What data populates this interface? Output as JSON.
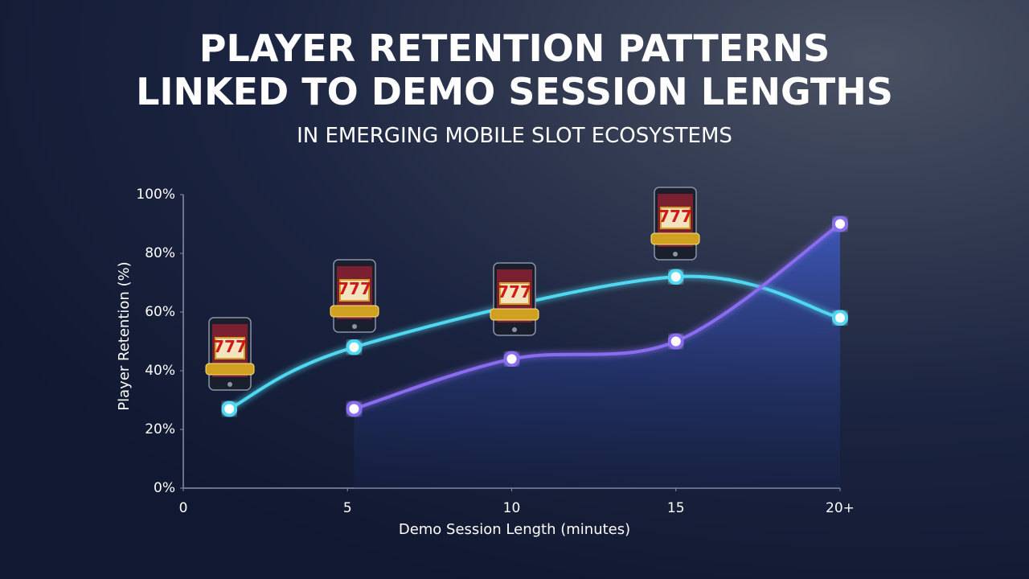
{
  "chart_data": {
    "type": "line",
    "title": [
      "PLAYER RETENTION PATTERNS",
      "LINKED TO DEMO SESSION LENGTHS"
    ],
    "subtitle": "IN EMERGING MOBILE SLOT ECOSYSTEMS",
    "x_label": "Demo Session Length (minutes)",
    "y_label": "Player Retention (%)",
    "series": [
      {
        "color": "#4fd8f0",
        "x": [
          1.4,
          5.2,
          15,
          20
        ],
        "values": [
          27,
          48,
          72,
          58
        ]
      },
      {
        "color": "#8a6cf0",
        "x": [
          5.2,
          10,
          15,
          20
        ],
        "values": [
          27,
          44,
          50,
          90
        ]
      }
    ],
    "xlim": [
      0,
      20
    ],
    "xticks": [
      0,
      5,
      10,
      15,
      {
        "value": 20,
        "label": "20+"
      }
    ],
    "ylim": [
      0,
      100
    ],
    "yticks": [
      {
        "value": 0,
        "label": "0%"
      },
      {
        "value": 20,
        "label": "20%"
      },
      {
        "value": 40,
        "label": "40%"
      },
      {
        "value": 60,
        "label": "60%"
      },
      {
        "value": 80,
        "label": "80%"
      },
      {
        "value": 100,
        "label": "100%"
      }
    ]
  }
}
